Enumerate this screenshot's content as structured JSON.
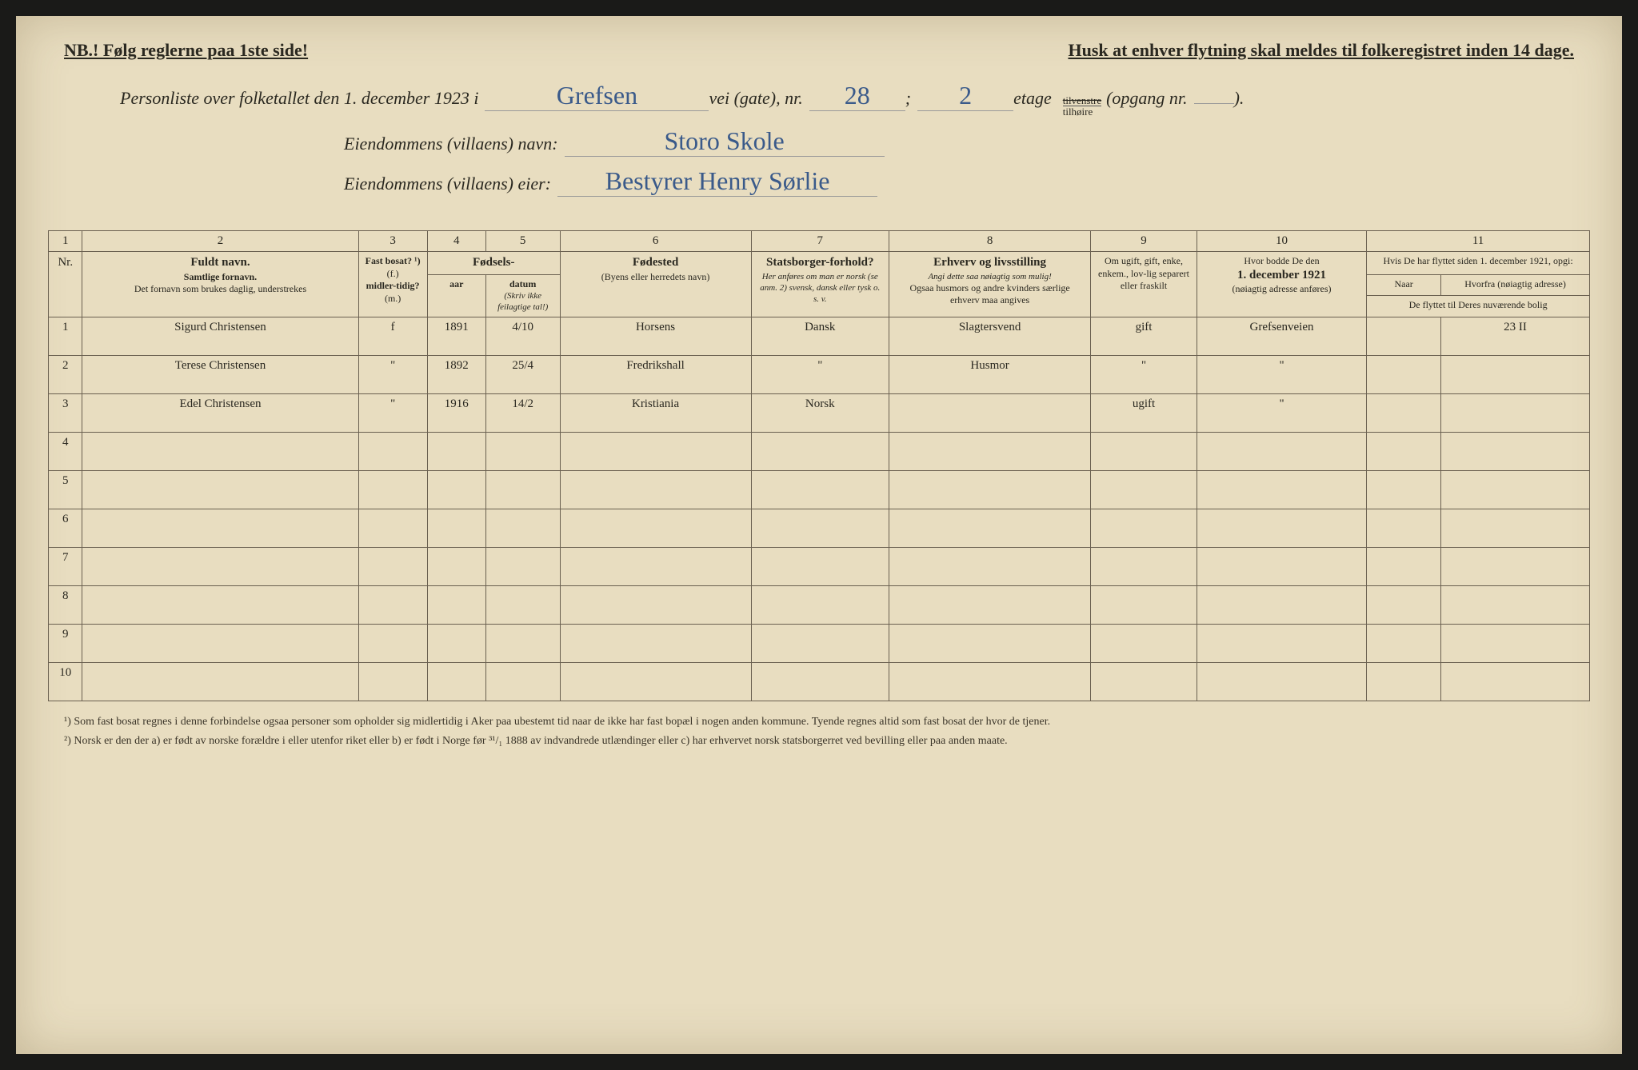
{
  "notices": {
    "left": "NB.! Følg reglerne paa 1ste side!",
    "right": "Husk at enhver flytning skal meldes til folkeregistret inden 14 dage."
  },
  "header": {
    "intro": "Personliste over folketallet den 1. december 1923 i",
    "street_name": "Grefsen",
    "street_label": "vei (gate), nr.",
    "street_nr": "28",
    "semicolon": ";",
    "floor": "2",
    "floor_label": "etage",
    "side_struck": "tilvenstre",
    "side": "tilhøire",
    "entrance_label": "(opgang nr.",
    "entrance": "",
    "close": ").",
    "property_label": "Eiendommens (villaens) navn:",
    "property_name": "Storo Skole",
    "owner_label": "Eiendommens (villaens) eier:",
    "owner_name": "Bestyrer Henry Sørlie"
  },
  "columns": {
    "c1": "1",
    "c2": "2",
    "c3": "3",
    "c4": "4",
    "c5": "5",
    "c6": "6",
    "c7": "7",
    "c8": "8",
    "c9": "9",
    "c10": "10",
    "c11": "11"
  },
  "headers": {
    "nr": "Nr.",
    "name_title": "Fuldt navn.",
    "name_sub1": "Samtlige fornavn.",
    "name_sub2": "Det fornavn som brukes daglig, understrekes",
    "residence": "Fast bosat? ¹)",
    "residence_f": "(f.)",
    "residence_mid": "midler-tidig?",
    "residence_m": "(m.)",
    "birth": "Fødsels-",
    "birth_year": "aar",
    "birth_date": "datum",
    "birth_note": "(Skriv ikke feilagtige tal!)",
    "birthplace": "Fødested",
    "birthplace_sub": "(Byens eller herredets navn)",
    "citizenship": "Statsborger-forhold?",
    "citizenship_sub": "Her anføres om man er norsk (se anm. 2) svensk, dansk eller tysk o. s. v.",
    "occupation": "Erhverv og livsstilling",
    "occupation_it": "Angi dette saa nøiagtig som mulig!",
    "occupation_sub": "Ogsaa husmors og andre kvinders særlige erhverv maa angives",
    "marital": "Om ugift, gift, enke, enkem., lov-lig separert eller fraskilt",
    "prev_addr": "Hvor bodde De den",
    "prev_addr_date": "1. december 1921",
    "prev_addr_sub": "(nøiagtig adresse anføres)",
    "moved": "Hvis De har flyttet siden 1. december 1921, opgi:",
    "moved_when": "Naar",
    "moved_from": "Hvorfra (nøiagtig adresse)",
    "moved_current": "De flyttet til Deres nuværende bolig"
  },
  "rows": [
    {
      "nr": "1",
      "name": "Sigurd Christensen",
      "residence": "f",
      "year": "1891",
      "date": "4/10",
      "birthplace": "Horsens",
      "citizenship": "Dansk",
      "occupation": "Slagtersvend",
      "marital": "gift",
      "prev_addr": "Grefsenveien",
      "moved_when": "",
      "moved_from": "23 II"
    },
    {
      "nr": "2",
      "name": "Terese Christensen",
      "residence": "\"",
      "year": "1892",
      "date": "25/4",
      "birthplace": "Fredrikshall",
      "citizenship": "\"",
      "occupation": "Husmor",
      "marital": "\"",
      "prev_addr": "\"",
      "moved_when": "",
      "moved_from": ""
    },
    {
      "nr": "3",
      "name": "Edel Christensen",
      "residence": "\"",
      "year": "1916",
      "date": "14/2",
      "birthplace": "Kristiania",
      "citizenship": "Norsk",
      "occupation": "",
      "marital": "ugift",
      "prev_addr": "\"",
      "moved_when": "",
      "moved_from": ""
    }
  ],
  "empty_rows": [
    "4",
    "5",
    "6",
    "7",
    "8",
    "9",
    "10"
  ],
  "footnotes": {
    "fn1": "¹) Som fast bosat regnes i denne forbindelse ogsaa personer som opholder sig midlertidig i Aker paa ubestemt tid naar de ikke har fast bopæl i nogen anden kommune. Tyende regnes altid som fast bosat der hvor de tjener.",
    "fn2": "²) Norsk er den der a) er født av norske forældre i eller utenfor riket eller b) er født i Norge før ³¹/₁ 1888 av indvandrede utlændinger eller c) har erhvervet norsk statsborgerret ved bevilling eller paa anden maate."
  },
  "colors": {
    "paper": "#e8ddc0",
    "ink_print": "#2a2820",
    "ink_hand": "#4a7aa8",
    "border": "#6a6050",
    "red": "#cc4030"
  }
}
